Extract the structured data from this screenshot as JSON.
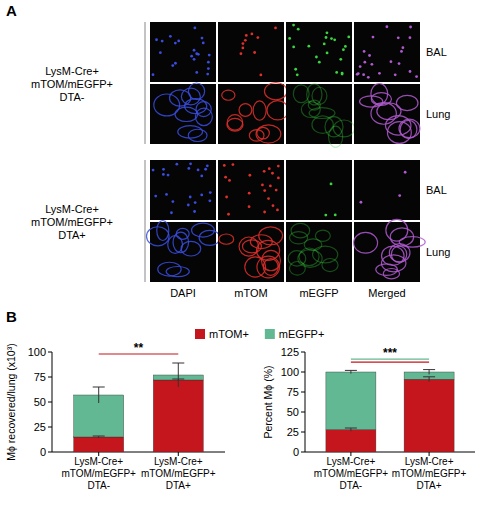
{
  "panel_labels": [
    "A",
    "B"
  ],
  "panel_a": {
    "columns": [
      "DAPI",
      "mTOM",
      "mEGFP",
      "Merged"
    ],
    "rows": [
      {
        "label": "LysM-Cre+ mTOM/mEGFP+ DTA-",
        "sublabels": [
          "BAL",
          "Lung"
        ]
      },
      {
        "label": "LysM-Cre+ mTOM/mEGFP+ DTA+",
        "sublabels": [
          "BAL",
          "Lung"
        ]
      }
    ]
  },
  "chart_data": [
    {
      "type": "bar",
      "stacked": true,
      "legend": "top",
      "y_label": "Mϕ recovered/lung (x10³)",
      "categories": [
        "LysM-Cre+ mTOM/mEGFP+ DTA-",
        "LysM-Cre+ mTOM/mEGFP+ DTA+"
      ],
      "series": [
        {
          "name": "mTOM+",
          "color": "#c4161c",
          "values": [
            15,
            72
          ],
          "errors": [
            1,
            1
          ]
        },
        {
          "name": "mEGFP+",
          "color": "#63b894",
          "values": [
            42,
            5
          ],
          "errors": [
            8,
            12
          ]
        }
      ],
      "ylim": [
        0,
        100
      ],
      "yticks": [
        0,
        25,
        50,
        75,
        100
      ],
      "annotations": [
        {
          "text": "**",
          "y": 98,
          "colors": [
            "#c4161c"
          ]
        }
      ]
    },
    {
      "type": "bar",
      "stacked": true,
      "y_label": "Percent Mϕ (%)",
      "categories": [
        "LysM-Cre+ mTOM/mEGFP+ DTA-",
        "LysM-Cre+ mTOM/mEGFP+ DTA+"
      ],
      "series": [
        {
          "name": "mTOM+",
          "color": "#c4161c",
          "values": [
            28,
            91
          ],
          "errors": [
            2,
            3
          ]
        },
        {
          "name": "mEGFP+",
          "color": "#63b894",
          "values": [
            72,
            9
          ],
          "errors": [
            2,
            3
          ]
        }
      ],
      "ylim": [
        0,
        125
      ],
      "yticks": [
        0,
        25,
        50,
        75,
        100,
        125
      ],
      "annotations": [
        {
          "text": "***",
          "y": 116,
          "colors": [
            "#63b894",
            "#c4161c"
          ]
        }
      ]
    }
  ]
}
